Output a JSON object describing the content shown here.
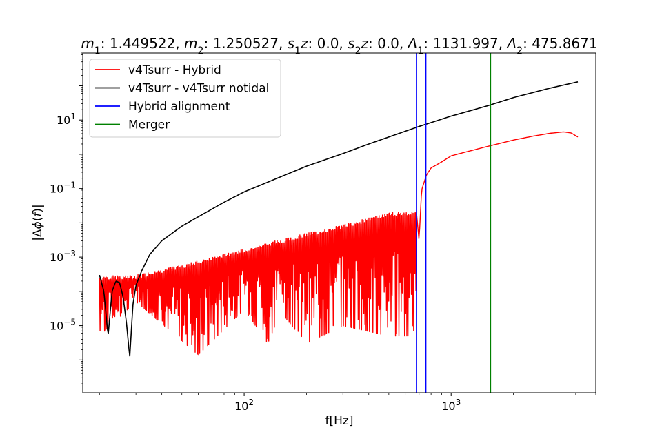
{
  "chart_data": {
    "type": "line",
    "title_parts": [
      {
        "sym": "m",
        "sub": "1",
        "val": "1.449522"
      },
      {
        "sym": "m",
        "sub": "2",
        "val": "1.250527"
      },
      {
        "sym": "s",
        "sub": "1",
        "suffix": "z",
        "val": "0.0"
      },
      {
        "sym": "s",
        "sub": "2",
        "suffix": "z",
        "val": "0.0"
      },
      {
        "sym": "Λ",
        "sub": "1",
        "val": "1131.997"
      },
      {
        "sym": "Λ",
        "sub": "2",
        "val": "475.8671"
      }
    ],
    "xlabel": "f[Hz]",
    "ylabel_parts": {
      "pre": "|Δ",
      "phi": "ϕ",
      "mid": "(",
      "var": "f",
      "post": ")|"
    },
    "x_scale": "log",
    "y_scale": "log",
    "xlim": [
      16.6,
      5000
    ],
    "ylim": [
      1.1e-07,
      900
    ],
    "x_ticks": [
      {
        "value": 100,
        "base": "10",
        "exp": "2"
      },
      {
        "value": 1000,
        "base": "10",
        "exp": "3"
      }
    ],
    "y_ticks": [
      {
        "value": 1e-05,
        "base": "10",
        "exp": "−5"
      },
      {
        "value": 0.001,
        "base": "10",
        "exp": "−3"
      },
      {
        "value": 0.1,
        "base": "10",
        "exp": "−1"
      },
      {
        "value": 10,
        "base": "10",
        "exp": "1"
      }
    ],
    "grid": false,
    "legend_position": "top-left",
    "series": [
      {
        "name": "v4Tsurr - Hybrid",
        "color": "#ff0000",
        "style": "oscillating",
        "envelope": [
          [
            20,
            0.00028
          ],
          [
            30,
            0.0003
          ],
          [
            50,
            0.0006
          ],
          [
            100,
            0.0018
          ],
          [
            200,
            0.005
          ],
          [
            300,
            0.009
          ],
          [
            400,
            0.014
          ],
          [
            500,
            0.02
          ],
          [
            600,
            0.022
          ],
          [
            680,
            0.02
          ]
        ],
        "dips": [
          [
            20,
            5e-06
          ],
          [
            30,
            5e-05
          ],
          [
            60,
            1.4e-06
          ],
          [
            100,
            3e-05
          ],
          [
            130,
            3e-06
          ],
          [
            150,
            2.5e-05
          ],
          [
            200,
            3e-06
          ],
          [
            300,
            1e-05
          ],
          [
            500,
            5e-06
          ],
          [
            650,
            5e-06
          ]
        ],
        "rise": [
          [
            680,
            0.02
          ],
          [
            700,
            0.003
          ],
          [
            720,
            0.09
          ],
          [
            760,
            0.25
          ],
          [
            800,
            0.4
          ],
          [
            900,
            0.6
          ],
          [
            1000,
            0.9
          ],
          [
            1100,
            1.05
          ],
          [
            1500,
            1.7
          ],
          [
            2000,
            2.6
          ],
          [
            2500,
            3.4
          ],
          [
            3000,
            4.1
          ],
          [
            3500,
            4.5
          ],
          [
            3800,
            4.2
          ],
          [
            4096,
            3.2
          ]
        ]
      },
      {
        "name": "v4Tsurr - v4Tsurr notidal",
        "color": "#000000",
        "style": "smooth",
        "points": [
          [
            20,
            0.0003
          ],
          [
            21,
            0.0001
          ],
          [
            22,
            5e-06
          ],
          [
            23,
            0.0001
          ],
          [
            24,
            0.0002
          ],
          [
            25,
            0.00018
          ],
          [
            26,
            7e-05
          ],
          [
            27,
            1.2e-05
          ],
          [
            28,
            1.2e-06
          ],
          [
            29,
            4e-05
          ],
          [
            30,
            0.00015
          ],
          [
            32,
            0.0004
          ],
          [
            35,
            0.0012
          ],
          [
            40,
            0.003
          ],
          [
            50,
            0.008
          ],
          [
            60,
            0.015
          ],
          [
            80,
            0.04
          ],
          [
            100,
            0.08
          ],
          [
            150,
            0.22
          ],
          [
            200,
            0.45
          ],
          [
            300,
            1.05
          ],
          [
            400,
            2.0
          ],
          [
            500,
            3.2
          ],
          [
            700,
            6.5
          ],
          [
            1000,
            13
          ],
          [
            1500,
            26
          ],
          [
            2000,
            45
          ],
          [
            3000,
            85
          ],
          [
            4096,
            130
          ]
        ]
      },
      {
        "name": "Hybrid alignment",
        "color": "#0000ff",
        "style": "vline",
        "x": [
          680,
          755
        ]
      },
      {
        "name": "Merger",
        "color": "#008000",
        "style": "vline",
        "x": [
          1550
        ]
      }
    ]
  }
}
